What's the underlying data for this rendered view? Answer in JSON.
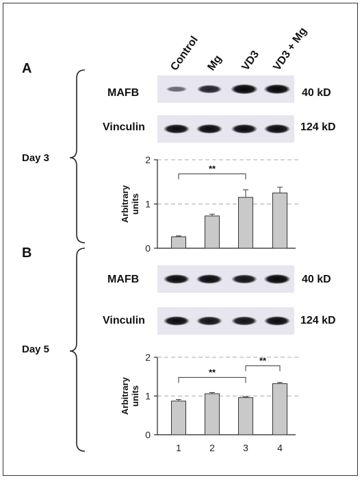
{
  "lanes": [
    "Control",
    "Mg",
    "VD3",
    "VD3 + Mg"
  ],
  "panels": [
    {
      "letter": "A",
      "day": "Day 3",
      "blots": [
        {
          "label": "MAFB",
          "kd": "40 kD",
          "intensities": [
            0.35,
            0.75,
            1.0,
            0.95
          ]
        },
        {
          "label": "Vinculin",
          "kd": "124 kD",
          "intensities": [
            0.9,
            0.9,
            0.9,
            0.9
          ]
        }
      ]
    },
    {
      "letter": "B",
      "day": "Day 5",
      "blots": [
        {
          "label": "MAFB",
          "kd": "40 kD",
          "intensities": [
            0.9,
            0.9,
            0.85,
            0.95
          ]
        },
        {
          "label": "Vinculin",
          "kd": "124 kD",
          "intensities": [
            0.9,
            0.85,
            0.85,
            0.9
          ]
        }
      ]
    }
  ],
  "chart_data": [
    {
      "type": "bar",
      "panel": "A",
      "categories": [
        "",
        "",
        "",
        ""
      ],
      "values": [
        0.26,
        0.73,
        1.15,
        1.25
      ],
      "errors": [
        0.02,
        0.04,
        0.17,
        0.13
      ],
      "ylabel": "Arbitrary units",
      "ylim": [
        0,
        2
      ],
      "yticks": [
        "0",
        "1",
        "2"
      ],
      "gridlines": [
        1,
        2
      ],
      "significance": [
        {
          "from": 0,
          "to": 2,
          "label": "**"
        }
      ]
    },
    {
      "type": "bar",
      "panel": "B",
      "categories": [
        "1",
        "2",
        "3",
        "4"
      ],
      "values": [
        0.87,
        1.06,
        0.96,
        1.32
      ],
      "errors": [
        0.04,
        0.03,
        0.02,
        0.03
      ],
      "ylabel": "Arbitrary units",
      "ylim": [
        0,
        2
      ],
      "yticks": [
        "0",
        "1",
        "2"
      ],
      "gridlines": [
        1,
        2
      ],
      "significance": [
        {
          "from": 0,
          "to": 2,
          "label": "**"
        },
        {
          "from": 2,
          "to": 3,
          "label": "**"
        }
      ]
    }
  ]
}
